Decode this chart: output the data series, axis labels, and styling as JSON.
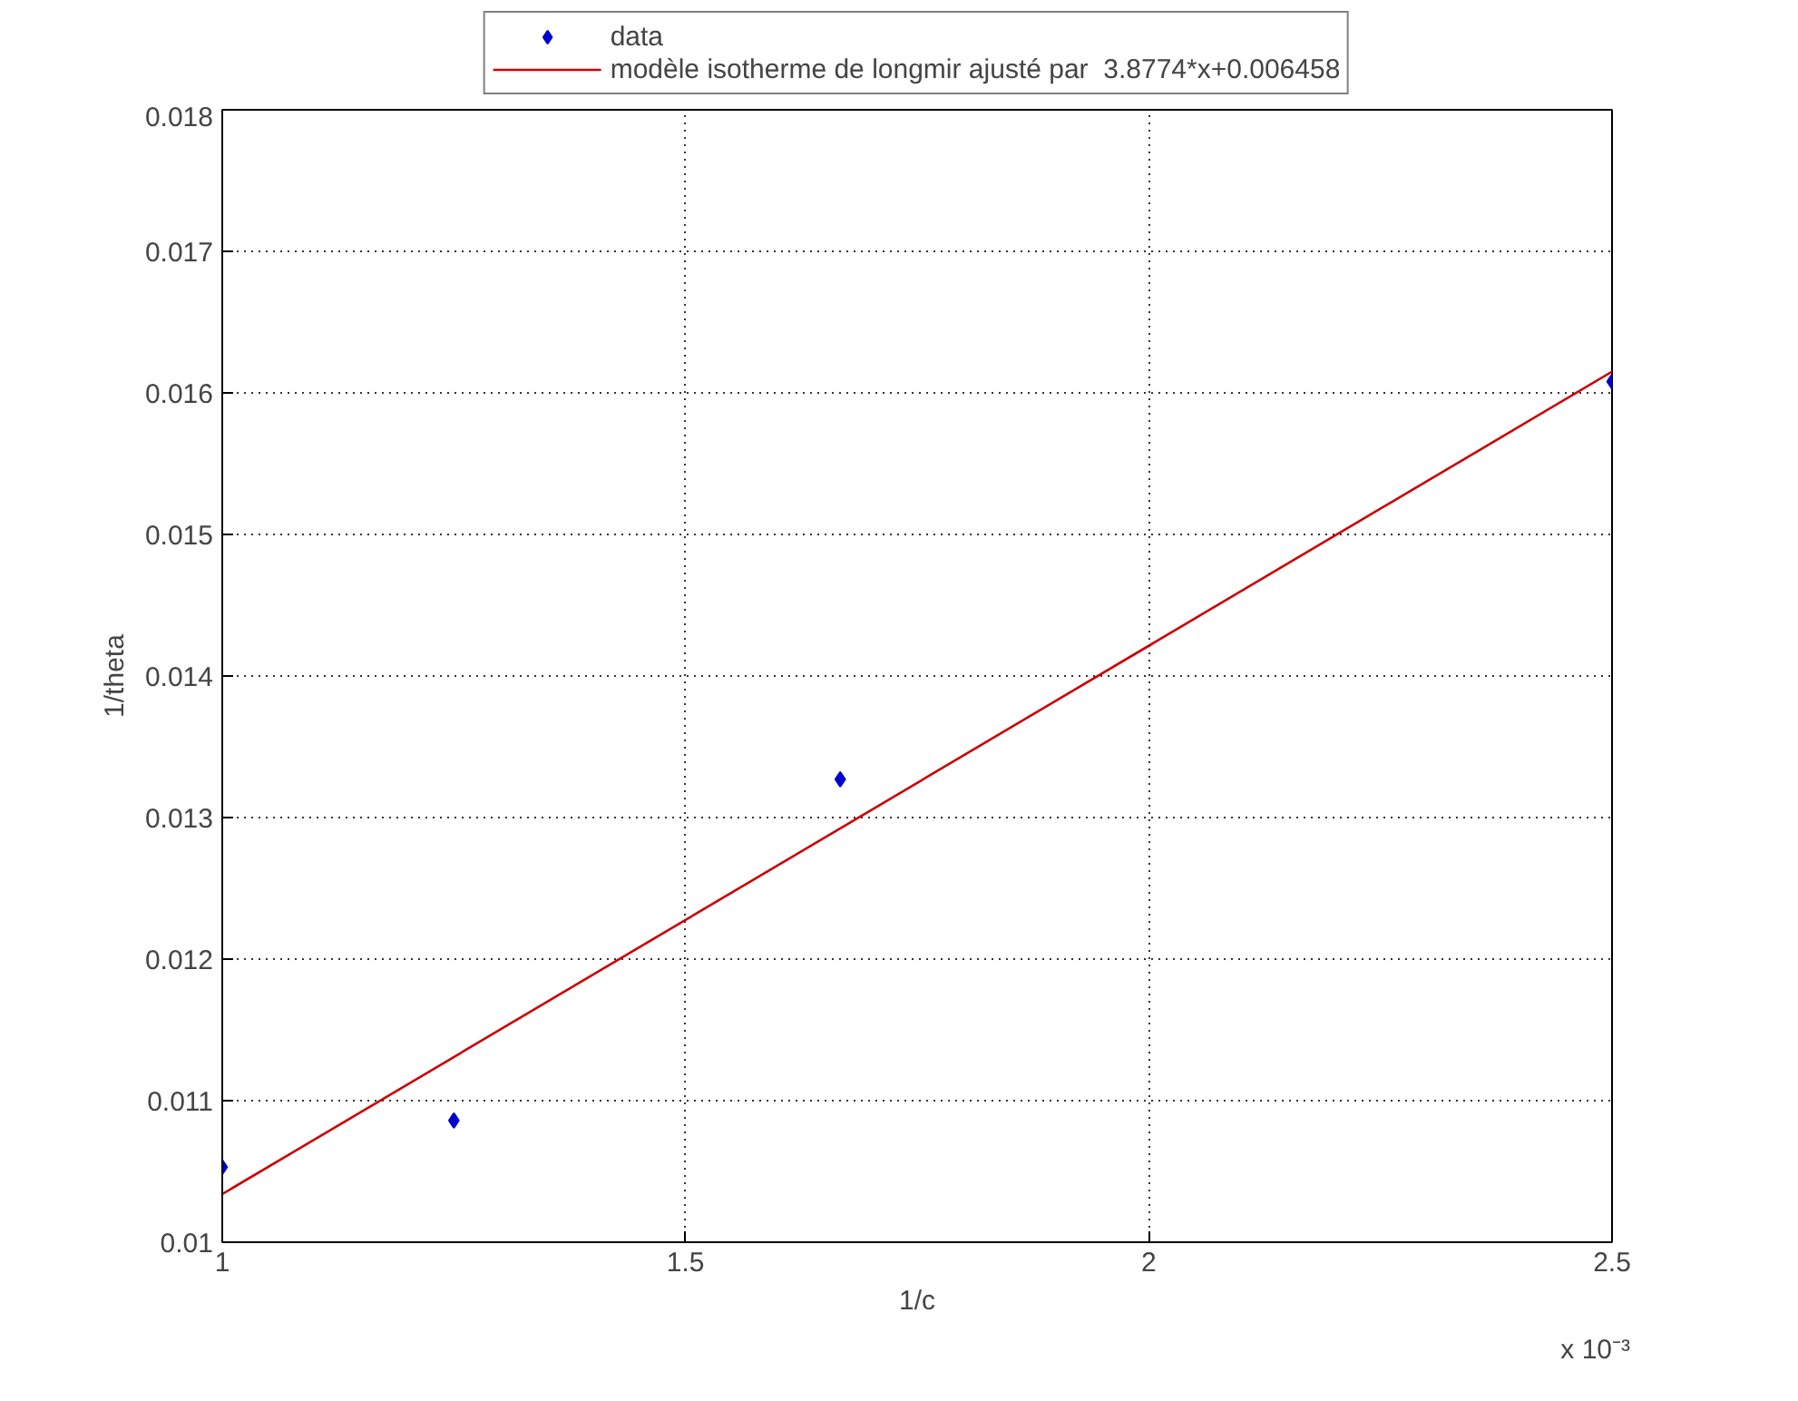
{
  "chart_data": {
    "type": "scatter",
    "xlabel": "1/c",
    "ylabel": "1/theta",
    "annotations": [
      "x 10⁻³"
    ],
    "xlim": [
      1,
      2.5
    ],
    "xticks": [
      1,
      1.5,
      2,
      2.5
    ],
    "ylim": [
      0.01,
      0.018
    ],
    "yticks": [
      0.01,
      0.011,
      0.012,
      0.013,
      0.014,
      0.015,
      0.016,
      0.017,
      0.018
    ],
    "grid": true,
    "legend": "top",
    "series": [
      {
        "name": "data",
        "marker": "diamond",
        "color": "#0000cc",
        "x": [
          1,
          1.25,
          1.667,
          2.5
        ],
        "values": [
          0.01053,
          0.01086,
          0.01327,
          0.01608
        ]
      },
      {
        "name": "modèle isotherme de longmir ajusté par  3.8774*x+0.006458",
        "type": "line",
        "marker": "none",
        "line_style": "solid",
        "color": "#cc0000",
        "x": [
          1,
          2.5
        ],
        "values": [
          0.01034,
          0.01615
        ]
      }
    ]
  }
}
